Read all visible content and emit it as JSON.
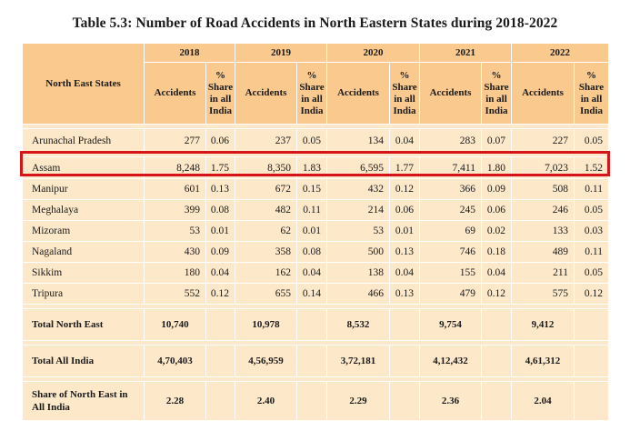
{
  "title": "Table 5.3:  Number of Road Accidents in North Eastern States during 2018-2022",
  "header": {
    "state_col": "North East States",
    "years": [
      "2018",
      "2019",
      "2020",
      "2021",
      "2022"
    ],
    "accidents_label": "Accidents",
    "share_label_lines": [
      "%",
      "Share",
      "in all",
      "India"
    ]
  },
  "highlight": {
    "state": "Assam",
    "color": "#d8141b"
  },
  "rows": [
    {
      "state": "Arunachal Pradesh",
      "values": [
        "277",
        "0.06",
        "237",
        "0.05",
        "134",
        "0.04",
        "283",
        "0.07",
        "227",
        "0.05"
      ]
    },
    {
      "state": "Assam",
      "values": [
        "8,248",
        "1.75",
        "8,350",
        "1.83",
        "6,595",
        "1.77",
        "7,411",
        "1.80",
        "7,023",
        "1.52"
      ]
    },
    {
      "state": "Manipur",
      "values": [
        "601",
        "0.13",
        "672",
        "0.15",
        "432",
        "0.12",
        "366",
        "0.09",
        "508",
        "0.11"
      ]
    },
    {
      "state": "Meghalaya",
      "values": [
        "399",
        "0.08",
        "482",
        "0.11",
        "214",
        "0.06",
        "245",
        "0.06",
        "246",
        "0.05"
      ]
    },
    {
      "state": "Mizoram",
      "values": [
        "53",
        "0.01",
        "62",
        "0.01",
        "53",
        "0.01",
        "69",
        "0.02",
        "133",
        "0.03"
      ]
    },
    {
      "state": "Nagaland",
      "values": [
        "430",
        "0.09",
        "358",
        "0.08",
        "500",
        "0.13",
        "746",
        "0.18",
        "489",
        "0.11"
      ]
    },
    {
      "state": "Sikkim",
      "values": [
        "180",
        "0.04",
        "162",
        "0.04",
        "138",
        "0.04",
        "155",
        "0.04",
        "211",
        "0.05"
      ]
    },
    {
      "state": "Tripura",
      "values": [
        "552",
        "0.12",
        "655",
        "0.14",
        "466",
        "0.13",
        "479",
        "0.12",
        "575",
        "0.12"
      ]
    }
  ],
  "totals": [
    {
      "label": "Total North East",
      "values": [
        "10,740",
        "10,978",
        "8,532",
        "9,754",
        "9,412"
      ]
    },
    {
      "label": "Total All India",
      "values": [
        "4,70,403",
        "4,56,959",
        "3,72,181",
        "4,12,432",
        "4,61,312"
      ]
    },
    {
      "label_lines": [
        "Share of North East in",
        "All India"
      ],
      "values": [
        "2.28",
        "2.40",
        "2.29",
        "2.36",
        "2.04"
      ]
    }
  ],
  "colors": {
    "header_bg": "#f9c98e",
    "body_bg": "#fde8ca"
  }
}
